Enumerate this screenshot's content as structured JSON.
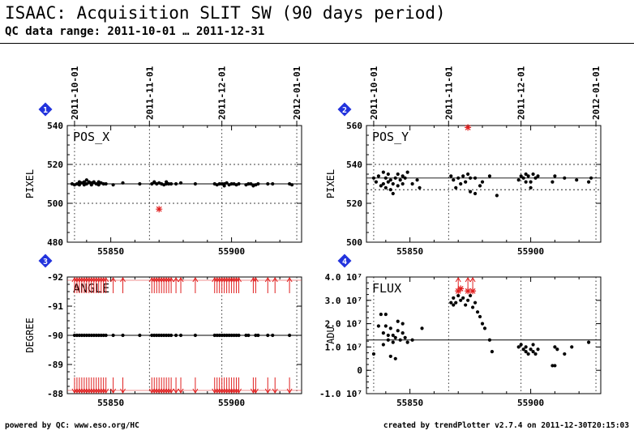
{
  "header": {
    "title": "ISAAC: Acquisition SLIT SW (90 days period)",
    "subtitle": "QC data range: 2011-10-01 … 2011-12-31"
  },
  "footer": {
    "left": "powered by QC: www.eso.org/HC",
    "right": "created by trendPlotter v2.7.4 on 2011-12-30T20:15:03"
  },
  "colors": {
    "points": "#000000",
    "outlier": "#e02020",
    "badge": "#2233dd",
    "reference": "#000000"
  },
  "chart_data": [
    {
      "type": "scatter",
      "badge": "1",
      "label": "POS_X",
      "ylabel": "PIXEL",
      "ylim": [
        480,
        540
      ],
      "yticks": [
        "480",
        "500",
        "520",
        "540"
      ],
      "xlim": [
        55832,
        55929
      ],
      "xticks": [
        55850,
        55900
      ],
      "xtick_labels": [
        "55850",
        "55900"
      ],
      "top_dates": [
        "2011-10-01",
        "2011-11-01",
        "2011-12-01",
        "2012-01-01"
      ],
      "top_date_mjd": [
        55835,
        55866,
        55896,
        55927
      ],
      "reference": {
        "mean": 510,
        "dotted": [
          500,
          520
        ]
      },
      "points": [
        [
          55834,
          510
        ],
        [
          55835,
          509.5
        ],
        [
          55836,
          510
        ],
        [
          55837,
          511
        ],
        [
          55837,
          509.5
        ],
        [
          55838,
          510.5
        ],
        [
          55839,
          511
        ],
        [
          55839,
          509.5
        ],
        [
          55840,
          512
        ],
        [
          55840,
          510
        ],
        [
          55841,
          511
        ],
        [
          55842,
          510.5
        ],
        [
          55842,
          509.5
        ],
        [
          55843,
          511
        ],
        [
          55844,
          510
        ],
        [
          55845,
          511
        ],
        [
          55845,
          509.5
        ],
        [
          55846,
          510.5
        ],
        [
          55847,
          510
        ],
        [
          55848,
          510
        ],
        [
          55851,
          509.5
        ],
        [
          55855,
          510.5
        ],
        [
          55862,
          510
        ],
        [
          55867,
          510
        ],
        [
          55868,
          511
        ],
        [
          55869,
          510
        ],
        [
          55870,
          510.5
        ],
        [
          55871,
          510
        ],
        [
          55872,
          509.5
        ],
        [
          55873,
          510
        ],
        [
          55873,
          511
        ],
        [
          55874,
          510
        ],
        [
          55875,
          510
        ],
        [
          55877,
          510
        ],
        [
          55879,
          510.5
        ],
        [
          55885,
          510
        ],
        [
          55893,
          510
        ],
        [
          55894,
          509.5
        ],
        [
          55895,
          510
        ],
        [
          55896,
          510
        ],
        [
          55897,
          510
        ],
        [
          55897,
          509
        ],
        [
          55898,
          510.5
        ],
        [
          55899,
          509.5
        ],
        [
          55900,
          510
        ],
        [
          55901,
          510
        ],
        [
          55902,
          509.5
        ],
        [
          55903,
          510
        ],
        [
          55906,
          509.5
        ],
        [
          55907,
          510
        ],
        [
          55908,
          510
        ],
        [
          55909,
          509
        ],
        [
          55910,
          509.5
        ],
        [
          55911,
          510
        ],
        [
          55915,
          510
        ],
        [
          55917,
          510
        ],
        [
          55924,
          510
        ],
        [
          55925,
          509.5
        ]
      ],
      "outliers": [
        [
          55870,
          497
        ]
      ],
      "arrows": []
    },
    {
      "type": "scatter",
      "badge": "2",
      "label": "POS_Y",
      "ylabel": "PIXEL",
      "ylim": [
        500,
        560
      ],
      "yticks": [
        "500",
        "520",
        "540",
        "560"
      ],
      "xlim": [
        55832,
        55929
      ],
      "xticks": [
        55850,
        55900
      ],
      "xtick_labels": [
        "55850",
        "55900"
      ],
      "top_dates": [
        "2011-10-01",
        "2011-11-01",
        "2011-12-01",
        "2012-01-01"
      ],
      "top_date_mjd": [
        55835,
        55866,
        55896,
        55927
      ],
      "reference": {
        "mean": 533,
        "dotted": [
          527,
          540
        ]
      },
      "points": [
        [
          55835,
          533
        ],
        [
          55836,
          531
        ],
        [
          55837,
          534
        ],
        [
          55838,
          529
        ],
        [
          55839,
          536
        ],
        [
          55839,
          530
        ],
        [
          55840,
          533
        ],
        [
          55840,
          528
        ],
        [
          55841,
          531
        ],
        [
          55841,
          535
        ],
        [
          55842,
          527
        ],
        [
          55842,
          532
        ],
        [
          55843,
          525
        ],
        [
          55843,
          530
        ],
        [
          55844,
          533
        ],
        [
          55845,
          535
        ],
        [
          55845,
          529
        ],
        [
          55846,
          532
        ],
        [
          55847,
          530
        ],
        [
          55847,
          534
        ],
        [
          55848,
          533
        ],
        [
          55849,
          536
        ],
        [
          55851,
          530
        ],
        [
          55853,
          532
        ],
        [
          55854,
          528
        ],
        [
          55867,
          534
        ],
        [
          55868,
          532
        ],
        [
          55869,
          528
        ],
        [
          55870,
          533
        ],
        [
          55871,
          530
        ],
        [
          55872,
          534
        ],
        [
          55873,
          531
        ],
        [
          55874,
          535
        ],
        [
          55875,
          533
        ],
        [
          55875,
          526
        ],
        [
          55877,
          533
        ],
        [
          55877,
          525
        ],
        [
          55879,
          529
        ],
        [
          55880,
          531
        ],
        [
          55883,
          534
        ],
        [
          55886,
          524
        ],
        [
          55895,
          532
        ],
        [
          55896,
          534
        ],
        [
          55897,
          533
        ],
        [
          55898,
          531
        ],
        [
          55898,
          535
        ],
        [
          55899,
          534
        ],
        [
          55900,
          531
        ],
        [
          55900,
          528
        ],
        [
          55901,
          535
        ],
        [
          55902,
          533
        ],
        [
          55903,
          534
        ],
        [
          55909,
          531
        ],
        [
          55910,
          534
        ],
        [
          55914,
          533
        ],
        [
          55919,
          532
        ],
        [
          55924,
          531
        ],
        [
          55925,
          533
        ]
      ],
      "outliers": [
        [
          55874,
          559
        ]
      ],
      "arrows": []
    },
    {
      "type": "scatter",
      "badge": "3",
      "label": "ANGLE",
      "ylabel": "DEGREE",
      "ylim": [
        -88,
        -92
      ],
      "yticks": [
        "-88",
        "-89",
        "-90",
        "-91",
        "-92"
      ],
      "xlim": [
        55832,
        55929
      ],
      "xticks": [
        55850,
        55900
      ],
      "xtick_labels": [
        "55850",
        "55900"
      ],
      "top_dates": [],
      "top_date_mjd": [
        55835,
        55866,
        55896,
        55927
      ],
      "reference": {
        "mean": -90,
        "dotted": []
      },
      "points": [
        [
          55835,
          -90
        ],
        [
          55836,
          -90
        ],
        [
          55837,
          -90
        ],
        [
          55838,
          -90
        ],
        [
          55839,
          -90
        ],
        [
          55840,
          -90
        ],
        [
          55841,
          -90
        ],
        [
          55842,
          -90
        ],
        [
          55843,
          -90
        ],
        [
          55844,
          -90
        ],
        [
          55845,
          -90
        ],
        [
          55846,
          -90
        ],
        [
          55847,
          -90
        ],
        [
          55848,
          -90
        ],
        [
          55851,
          -90
        ],
        [
          55855,
          -90
        ],
        [
          55862,
          -90
        ],
        [
          55867,
          -90
        ],
        [
          55868,
          -90
        ],
        [
          55869,
          -90
        ],
        [
          55870,
          -90
        ],
        [
          55871,
          -90
        ],
        [
          55872,
          -90
        ],
        [
          55873,
          -90
        ],
        [
          55874,
          -90
        ],
        [
          55875,
          -90
        ],
        [
          55877,
          -90
        ],
        [
          55879,
          -90
        ],
        [
          55885,
          -90
        ],
        [
          55893,
          -90
        ],
        [
          55894,
          -90
        ],
        [
          55895,
          -90
        ],
        [
          55896,
          -90
        ],
        [
          55897,
          -90
        ],
        [
          55898,
          -90
        ],
        [
          55899,
          -90
        ],
        [
          55900,
          -90
        ],
        [
          55901,
          -90
        ],
        [
          55902,
          -90
        ],
        [
          55903,
          -90
        ],
        [
          55906,
          -90
        ],
        [
          55907,
          -90
        ],
        [
          55910,
          -90
        ],
        [
          55911,
          -90
        ],
        [
          55915,
          -90
        ],
        [
          55917,
          -90
        ],
        [
          55924,
          -90
        ]
      ],
      "outliers": [],
      "arrows": [
        55835,
        55836,
        55837,
        55838,
        55839,
        55840,
        55841,
        55842,
        55843,
        55844,
        55845,
        55846,
        55847,
        55848,
        55851,
        55855,
        55867,
        55868,
        55869,
        55870,
        55871,
        55872,
        55873,
        55874,
        55875,
        55877,
        55879,
        55885,
        55893,
        55894,
        55895,
        55896,
        55897,
        55898,
        55899,
        55900,
        55901,
        55902,
        55903,
        55909,
        55910,
        55915,
        55918,
        55924
      ]
    },
    {
      "type": "scatter",
      "badge": "4",
      "label": "FLUX",
      "ylabel": "ADU",
      "ylim": [
        -10000000,
        40000000
      ],
      "yticks": [
        "-1.0 10⁷",
        "0",
        "1.0 10⁷",
        "2.0 10⁷",
        "3.0 10⁷",
        "4.0 10⁷"
      ],
      "xlim": [
        55832,
        55929
      ],
      "xticks": [
        55850,
        55900
      ],
      "xtick_labels": [
        "55850",
        "55900"
      ],
      "top_dates": [],
      "top_date_mjd": [
        55835,
        55866,
        55896,
        55927
      ],
      "reference": {
        "mean": 13000000,
        "dotted": []
      },
      "points": [
        [
          55835,
          7000000
        ],
        [
          55837,
          19000000
        ],
        [
          55838,
          24000000
        ],
        [
          55839,
          16000000
        ],
        [
          55839,
          11000000
        ],
        [
          55840,
          24000000
        ],
        [
          55840,
          19000000
        ],
        [
          55841,
          15000000
        ],
        [
          55841,
          13000000
        ],
        [
          55842,
          18000000
        ],
        [
          55842,
          6000000
        ],
        [
          55843,
          12000000
        ],
        [
          55843,
          15000000
        ],
        [
          55844,
          5000000
        ],
        [
          55844,
          14000000
        ],
        [
          55845,
          21000000
        ],
        [
          55845,
          17000000
        ],
        [
          55846,
          13000000
        ],
        [
          55847,
          20000000
        ],
        [
          55847,
          16000000
        ],
        [
          55848,
          14000000
        ],
        [
          55849,
          12000000
        ],
        [
          55851,
          13000000
        ],
        [
          55855,
          18000000
        ],
        [
          55867,
          29000000
        ],
        [
          55868,
          31000000
        ],
        [
          55868,
          28000000
        ],
        [
          55869,
          29000000
        ],
        [
          55870,
          32000000
        ],
        [
          55871,
          30000000
        ],
        [
          55872,
          31000000
        ],
        [
          55873,
          28000000
        ],
        [
          55874,
          30000000
        ],
        [
          55875,
          32000000
        ],
        [
          55876,
          27000000
        ],
        [
          55877,
          29000000
        ],
        [
          55878,
          25000000
        ],
        [
          55879,
          23000000
        ],
        [
          55880,
          20000000
        ],
        [
          55881,
          18000000
        ],
        [
          55883,
          13000000
        ],
        [
          55884,
          8000000
        ],
        [
          55895,
          10000000
        ],
        [
          55896,
          11000000
        ],
        [
          55897,
          9000000
        ],
        [
          55898,
          10000000
        ],
        [
          55898,
          8000000
        ],
        [
          55899,
          7000000
        ],
        [
          55900,
          9000000
        ],
        [
          55901,
          11000000
        ],
        [
          55901,
          8000000
        ],
        [
          55902,
          7000000
        ],
        [
          55903,
          9000000
        ],
        [
          55909,
          2000000
        ],
        [
          55910,
          2000000
        ],
        [
          55910,
          10000000
        ],
        [
          55911,
          9000000
        ],
        [
          55914,
          7000000
        ],
        [
          55917,
          10000000
        ],
        [
          55924,
          12000000
        ]
      ],
      "outliers": [
        [
          55870,
          34000000
        ],
        [
          55871,
          35000000
        ],
        [
          55874,
          34000000
        ],
        [
          55876,
          34000000
        ]
      ],
      "arrows": [
        55870,
        55874,
        55876
      ]
    }
  ]
}
